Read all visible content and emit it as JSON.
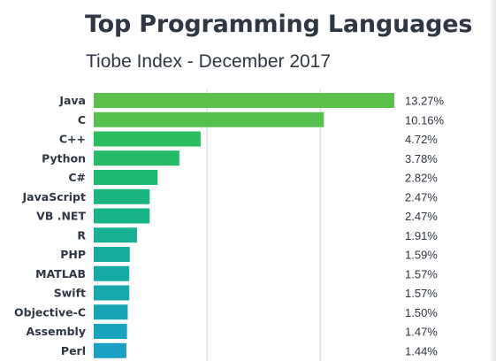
{
  "chart_data": {
    "type": "bar",
    "orientation": "horizontal",
    "title": "Top Programming Languages",
    "subtitle": "Tiobe Index - December 2017",
    "categories": [
      "Java",
      "C",
      "C++",
      "Python",
      "C#",
      "JavaScript",
      "VB .NET",
      "R",
      "PHP",
      "MATLAB",
      "Swift",
      "Objective-C",
      "Assembly",
      "Perl"
    ],
    "values": [
      13.27,
      10.16,
      4.72,
      3.78,
      2.82,
      2.47,
      2.47,
      1.91,
      1.59,
      1.57,
      1.57,
      1.5,
      1.47,
      1.44
    ],
    "value_labels": [
      "13.27%",
      "10.16%",
      "4.72%",
      "3.78%",
      "2.82%",
      "2.47%",
      "2.47%",
      "1.91%",
      "1.59%",
      "1.57%",
      "1.57%",
      "1.50%",
      "1.47%",
      "1.44%"
    ],
    "xlim": [
      0,
      15
    ],
    "grid": true,
    "colors": [
      "#5cc14a",
      "#56c04c",
      "#2cbd61",
      "#25bb69",
      "#1fb974",
      "#1ab57f",
      "#18b387",
      "#17b092",
      "#16ad9c",
      "#16aaa5",
      "#16a8ad",
      "#17a5b5",
      "#18a3bc",
      "#19a0c3"
    ]
  }
}
